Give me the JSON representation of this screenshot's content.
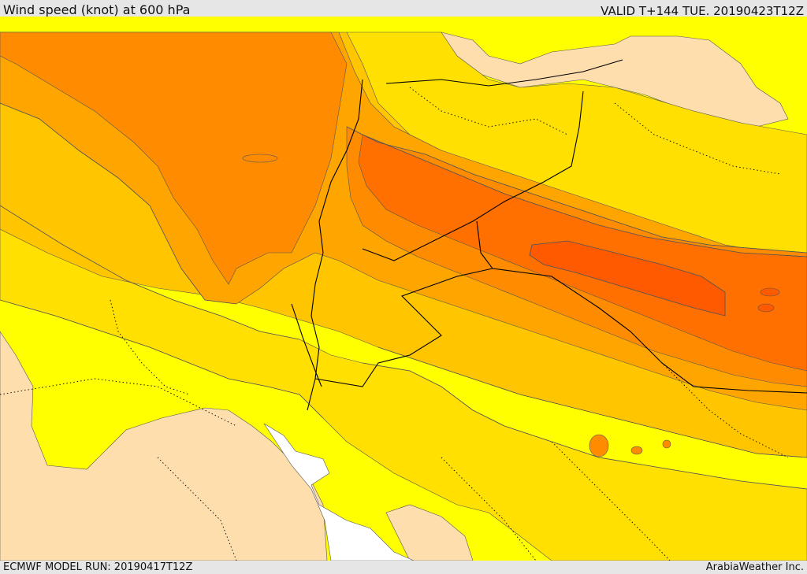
{
  "header": {
    "title": "Wind speed (knot) at 600 hPa",
    "valid": "VALID T+144 TUE. 20190423T12Z"
  },
  "footer": {
    "model_run": "ECMWF MODEL RUN: 20190417T12Z",
    "credit": "ArabiaWeather Inc."
  },
  "map": {
    "field": "wind speed",
    "level": "600 hPa",
    "palette": {
      "sea": "#ffffff",
      "land_low": "#ffdead",
      "band_1": "#ffff00",
      "band_2": "#ffe000",
      "band_3": "#ffc600",
      "band_4": "#ffa500",
      "band_5": "#ff8c00",
      "band_6": "#ff7000",
      "band_7": "#ff5a00",
      "contour": "#555555",
      "border": "#000000"
    }
  }
}
